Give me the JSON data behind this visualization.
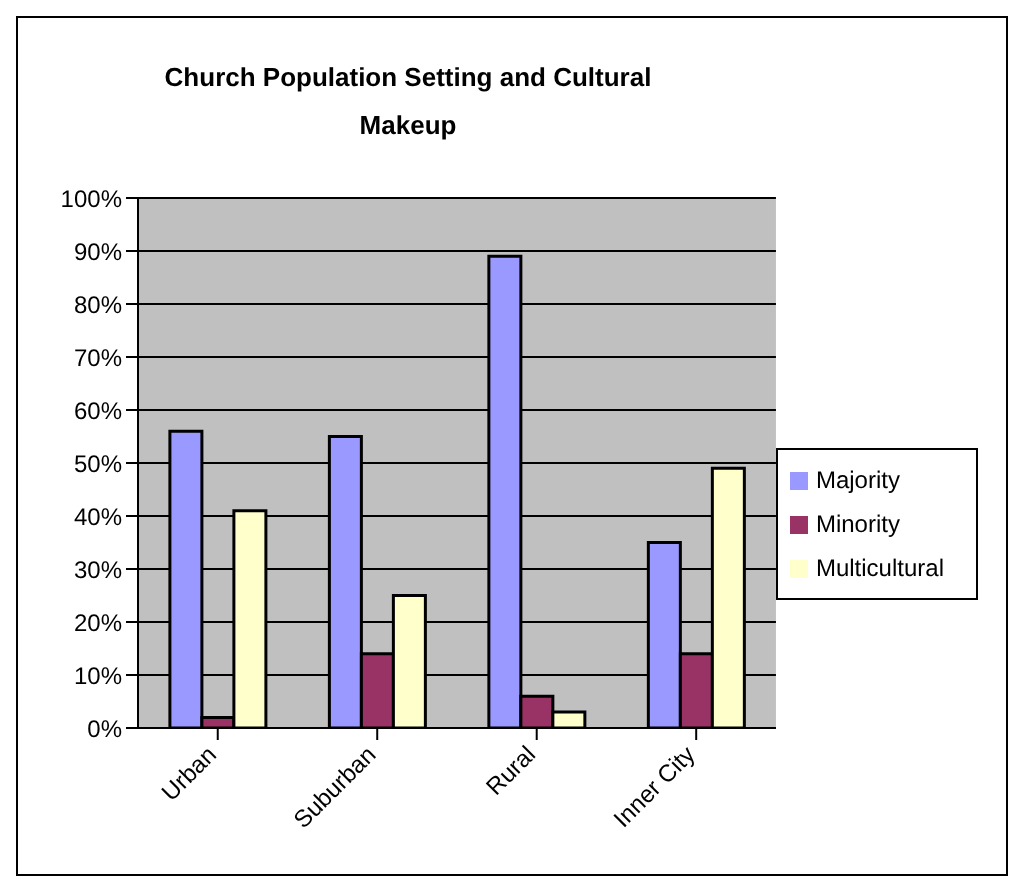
{
  "chart_data": {
    "type": "bar",
    "title": "Church Population Setting and Cultural Makeup",
    "categories": [
      "Urban",
      "Suburban",
      "Rural",
      "Inner City"
    ],
    "series": [
      {
        "name": "Majority",
        "color": "#9999ff",
        "values": [
          56,
          55,
          89,
          35
        ]
      },
      {
        "name": "Minority",
        "color": "#993366",
        "values": [
          2,
          14,
          6,
          14
        ]
      },
      {
        "name": "Multicultural",
        "color": "#ffffcc",
        "values": [
          41,
          25,
          3,
          49
        ]
      }
    ],
    "ylim": [
      0,
      100
    ],
    "yticks": [
      {
        "value": 0,
        "label": "0%"
      },
      {
        "value": 10,
        "label": "10%"
      },
      {
        "value": 20,
        "label": "20%"
      },
      {
        "value": 30,
        "label": "30%"
      },
      {
        "value": 40,
        "label": "40%"
      },
      {
        "value": 50,
        "label": "50%"
      },
      {
        "value": 60,
        "label": "60%"
      },
      {
        "value": 70,
        "label": "70%"
      },
      {
        "value": 80,
        "label": "80%"
      },
      {
        "value": 90,
        "label": "90%"
      },
      {
        "value": 100,
        "label": "100%"
      }
    ],
    "grid": "y",
    "legend": "right"
  }
}
